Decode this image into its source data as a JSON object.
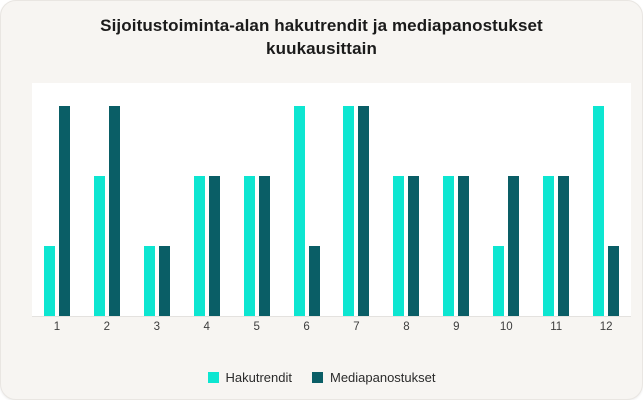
{
  "card": {
    "title": "Sijoitustoiminta-alan hakutrendit ja mediapanostukset kuukausittain"
  },
  "chart_data": {
    "type": "bar",
    "title": "Sijoitustoiminta-alan hakutrendit ja mediapanostukset kuukausittain",
    "categories": [
      "1",
      "2",
      "3",
      "4",
      "5",
      "6",
      "7",
      "8",
      "9",
      "10",
      "11",
      "12"
    ],
    "series": [
      {
        "name": "Hakutrendit",
        "color": "#0de6d1",
        "values": [
          1,
          2,
          1,
          2,
          2,
          3,
          3,
          2,
          2,
          1,
          2,
          3
        ]
      },
      {
        "name": "Mediapanostukset",
        "color": "#0a5e66",
        "values": [
          3,
          3,
          1,
          2,
          2,
          1,
          3,
          2,
          2,
          2,
          2,
          1
        ]
      }
    ],
    "xlabel": "",
    "ylabel": "",
    "ylim": [
      0,
      3.33
    ],
    "grid": false,
    "y_axis_visible": false,
    "legend_position": "bottom",
    "colors": {
      "card_background": "#f7f5f2",
      "plot_background": "#ffffff",
      "baseline": "#e4e2df",
      "title_text": "#1b1b1b",
      "axis_text": "#3d3d3d",
      "legend_text": "#2b2b2b"
    }
  }
}
